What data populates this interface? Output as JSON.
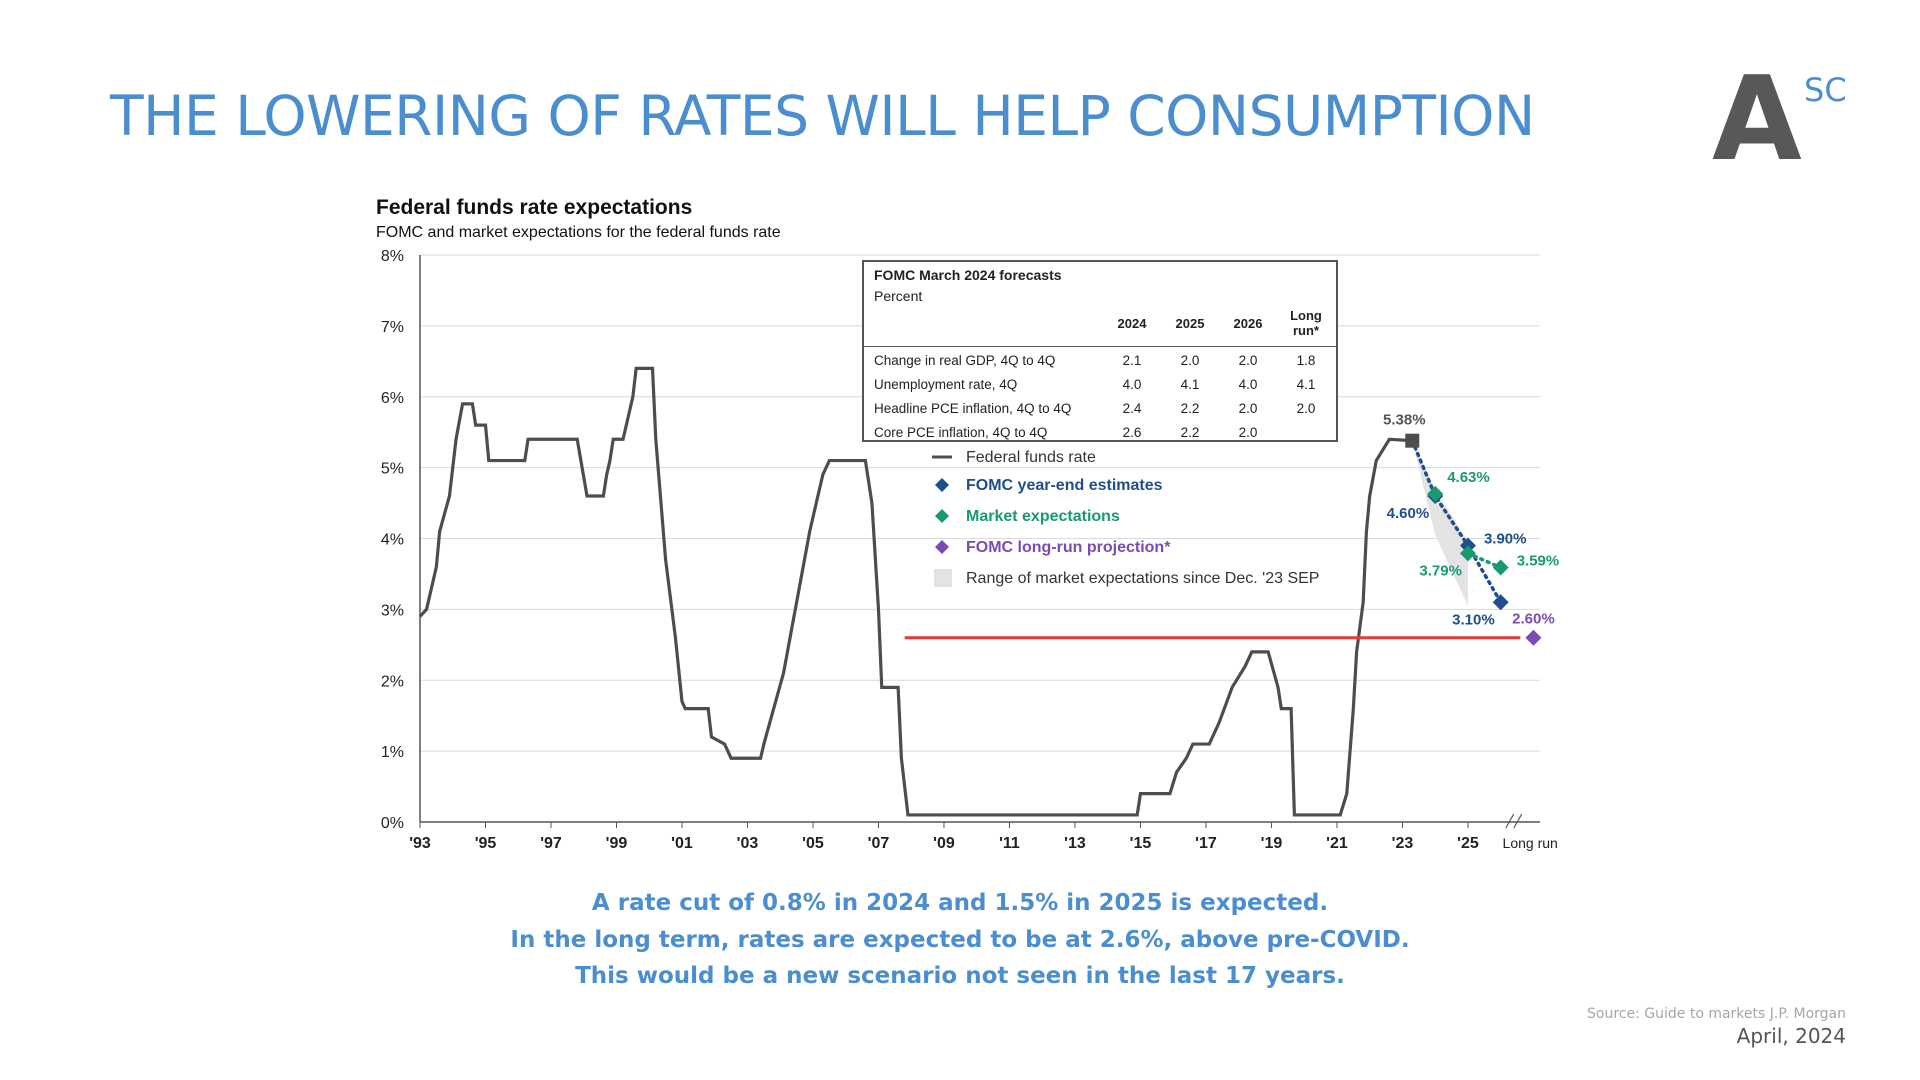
{
  "slide": {
    "title": "THE LOWERING OF RATES WILL HELP CONSUMPTION",
    "logo": {
      "main": "A",
      "sup": "SC"
    },
    "captions": [
      "A rate cut of 0.8% in 2024 and 1.5% in 2025 is expected.",
      "In the long term, rates are expected to be at 2.6%, above pre-COVID.",
      "This would be a new scenario not seen in the last 17 years."
    ],
    "source": "Source: Guide to markets J.P. Morgan",
    "date": "April, 2024"
  },
  "chart_data": {
    "type": "line",
    "title": "Federal funds rate expectations",
    "subtitle": "FOMC and market expectations for the federal funds rate",
    "xlabel": "",
    "ylabel": "",
    "ylim": [
      0,
      8
    ],
    "xlim": [
      1993,
      2027.2
    ],
    "grid": true,
    "legend_position": "center-right",
    "y_ticks": [
      "0%",
      "1%",
      "2%",
      "3%",
      "4%",
      "5%",
      "6%",
      "7%",
      "8%"
    ],
    "x_ticks": [
      {
        "x": 1993,
        "label": "'93"
      },
      {
        "x": 1995,
        "label": "'95"
      },
      {
        "x": 1997,
        "label": "'97"
      },
      {
        "x": 1999,
        "label": "'99"
      },
      {
        "x": 2001,
        "label": "'01"
      },
      {
        "x": 2003,
        "label": "'03"
      },
      {
        "x": 2005,
        "label": "'05"
      },
      {
        "x": 2007,
        "label": "'07"
      },
      {
        "x": 2009,
        "label": "'09"
      },
      {
        "x": 2011,
        "label": "'11"
      },
      {
        "x": 2013,
        "label": "'13"
      },
      {
        "x": 2015,
        "label": "'15"
      },
      {
        "x": 2017,
        "label": "'17"
      },
      {
        "x": 2019,
        "label": "'19"
      },
      {
        "x": 2021,
        "label": "'21"
      },
      {
        "x": 2023,
        "label": "'23"
      },
      {
        "x": 2025,
        "label": "'25"
      },
      {
        "x": 2026.9,
        "label": "Long run"
      }
    ],
    "colors": {
      "fed_funds": "#4d4d4d",
      "fomc": "#1f4e8c",
      "market": "#1a9a6c",
      "long_run": "#7a4bb5",
      "range": "#e3e3e3",
      "reference_line": "#e53935",
      "grid": "#d9d9d9",
      "axis": "#555555"
    },
    "series": [
      {
        "name": "Federal funds rate",
        "style": "step-line",
        "points": [
          [
            1993.0,
            2.9
          ],
          [
            1993.2,
            3.0
          ],
          [
            1993.5,
            3.6
          ],
          [
            1993.6,
            4.1
          ],
          [
            1993.9,
            4.6
          ],
          [
            1994.1,
            5.4
          ],
          [
            1994.3,
            5.9
          ],
          [
            1994.6,
            5.9
          ],
          [
            1994.7,
            5.6
          ],
          [
            1995.0,
            5.6
          ],
          [
            1995.1,
            5.1
          ],
          [
            1996.2,
            5.1
          ],
          [
            1996.3,
            5.4
          ],
          [
            1997.8,
            5.4
          ],
          [
            1998.1,
            4.6
          ],
          [
            1998.6,
            4.6
          ],
          [
            1998.7,
            4.9
          ],
          [
            1998.8,
            5.1
          ],
          [
            1998.9,
            5.4
          ],
          [
            1999.2,
            5.4
          ],
          [
            1999.3,
            5.6
          ],
          [
            1999.5,
            6.0
          ],
          [
            1999.6,
            6.4
          ],
          [
            2000.1,
            6.4
          ],
          [
            2000.2,
            5.4
          ],
          [
            2000.5,
            3.7
          ],
          [
            2000.8,
            2.6
          ],
          [
            2001.0,
            1.7
          ],
          [
            2001.1,
            1.6
          ],
          [
            2001.8,
            1.6
          ],
          [
            2001.9,
            1.2
          ],
          [
            2002.3,
            1.1
          ],
          [
            2002.5,
            0.9
          ],
          [
            2003.4,
            0.9
          ],
          [
            2003.5,
            1.1
          ],
          [
            2003.8,
            1.6
          ],
          [
            2004.1,
            2.1
          ],
          [
            2004.5,
            3.1
          ],
          [
            2004.9,
            4.1
          ],
          [
            2005.3,
            4.9
          ],
          [
            2005.5,
            5.1
          ],
          [
            2006.6,
            5.1
          ],
          [
            2006.8,
            4.5
          ],
          [
            2007.0,
            3.0
          ],
          [
            2007.1,
            1.9
          ],
          [
            2007.6,
            1.9
          ],
          [
            2007.7,
            0.9
          ],
          [
            2007.9,
            0.1
          ],
          [
            2014.9,
            0.1
          ],
          [
            2015.0,
            0.4
          ],
          [
            2015.9,
            0.4
          ],
          [
            2016.1,
            0.7
          ],
          [
            2016.4,
            0.9
          ],
          [
            2016.6,
            1.1
          ],
          [
            2017.1,
            1.1
          ],
          [
            2017.4,
            1.4
          ],
          [
            2017.8,
            1.9
          ],
          [
            2018.2,
            2.2
          ],
          [
            2018.4,
            2.4
          ],
          [
            2018.9,
            2.4
          ],
          [
            2019.2,
            1.9
          ],
          [
            2019.3,
            1.6
          ],
          [
            2019.6,
            1.6
          ],
          [
            2019.7,
            0.1
          ],
          [
            2021.1,
            0.1
          ],
          [
            2021.3,
            0.4
          ],
          [
            2021.5,
            1.6
          ],
          [
            2021.6,
            2.4
          ],
          [
            2021.8,
            3.1
          ],
          [
            2021.9,
            4.1
          ],
          [
            2022.0,
            4.6
          ],
          [
            2022.2,
            5.1
          ],
          [
            2022.6,
            5.4
          ],
          [
            2023.3,
            5.38
          ]
        ]
      },
      {
        "name": "FOMC year-end estimates",
        "style": "diamond",
        "points": [
          [
            2024.0,
            4.6
          ],
          [
            2025.0,
            3.9
          ],
          [
            2026.0,
            3.1
          ]
        ]
      },
      {
        "name": "Market expectations",
        "style": "diamond",
        "points": [
          [
            2024.0,
            4.63
          ],
          [
            2025.0,
            3.79
          ],
          [
            2026.0,
            3.59
          ]
        ]
      },
      {
        "name": "FOMC long-run projection*",
        "style": "diamond",
        "points": [
          [
            2027.0,
            2.6
          ]
        ]
      },
      {
        "name": "Range of market expectations since Dec. '23 SEP",
        "style": "band",
        "upper": [
          [
            2023.3,
            5.38
          ],
          [
            2024.0,
            4.7
          ],
          [
            2025.0,
            3.95
          ]
        ],
        "lower": [
          [
            2025.0,
            3.05
          ],
          [
            2024.0,
            4.05
          ],
          [
            2023.3,
            5.38
          ]
        ]
      }
    ],
    "endpoint": {
      "x": 2023.3,
      "y": 5.38,
      "label": "5.38%"
    },
    "projection_path": [
      [
        2023.3,
        5.38
      ],
      [
        2024.0,
        4.6
      ],
      [
        2025.0,
        3.9
      ],
      [
        2026.0,
        3.1
      ]
    ],
    "market_path": [
      [
        2025.0,
        3.79
      ],
      [
        2026.0,
        3.59
      ]
    ],
    "reference_line": {
      "y": 2.6,
      "x_start": 2007.8,
      "x_end": 2026.6
    },
    "data_labels": [
      {
        "text": "4.63%",
        "series": "market",
        "x": 2024.0,
        "y": 4.63,
        "anchor": "above-right"
      },
      {
        "text": "4.60%",
        "series": "fomc",
        "x": 2024.0,
        "y": 4.6,
        "anchor": "below-left"
      },
      {
        "text": "3.90%",
        "series": "fomc",
        "x": 2025.0,
        "y": 3.9,
        "anchor": "right"
      },
      {
        "text": "3.79%",
        "series": "market",
        "x": 2025.0,
        "y": 3.79,
        "anchor": "below-left"
      },
      {
        "text": "3.59%",
        "series": "market",
        "x": 2026.0,
        "y": 3.59,
        "anchor": "right"
      },
      {
        "text": "3.10%",
        "series": "fomc",
        "x": 2026.0,
        "y": 3.1,
        "anchor": "below-left"
      },
      {
        "text": "2.60%",
        "series": "long_run",
        "x": 2027.0,
        "y": 2.6,
        "anchor": "above"
      }
    ],
    "legend": [
      {
        "label": "Federal funds rate",
        "marker": "line",
        "color": "#4d4d4d"
      },
      {
        "label": "FOMC year-end estimates",
        "marker": "diamond",
        "color": "#1f4e8c"
      },
      {
        "label": "Market expectations",
        "marker": "diamond",
        "color": "#1a9a6c"
      },
      {
        "label": "FOMC long-run projection*",
        "marker": "diamond",
        "color": "#7a4bb5"
      },
      {
        "label": "Range of market expectations since Dec. '23 SEP",
        "marker": "square",
        "color": "#e3e3e3"
      }
    ],
    "forecast_table": {
      "title": "FOMC March 2024 forecasts",
      "subtitle": "Percent",
      "columns": [
        "2024",
        "2025",
        "2026",
        "Long run*"
      ],
      "rows": [
        {
          "label": "Change in real GDP, 4Q to 4Q",
          "values": [
            "2.1",
            "2.0",
            "2.0",
            "1.8"
          ]
        },
        {
          "label": "Unemployment rate, 4Q",
          "values": [
            "4.0",
            "4.1",
            "4.0",
            "4.1"
          ]
        },
        {
          "label": "Headline PCE inflation, 4Q to 4Q",
          "values": [
            "2.4",
            "2.2",
            "2.0",
            "2.0"
          ]
        },
        {
          "label": "Core PCE inflation, 4Q to 4Q",
          "values": [
            "2.6",
            "2.2",
            "2.0",
            ""
          ]
        }
      ]
    }
  }
}
